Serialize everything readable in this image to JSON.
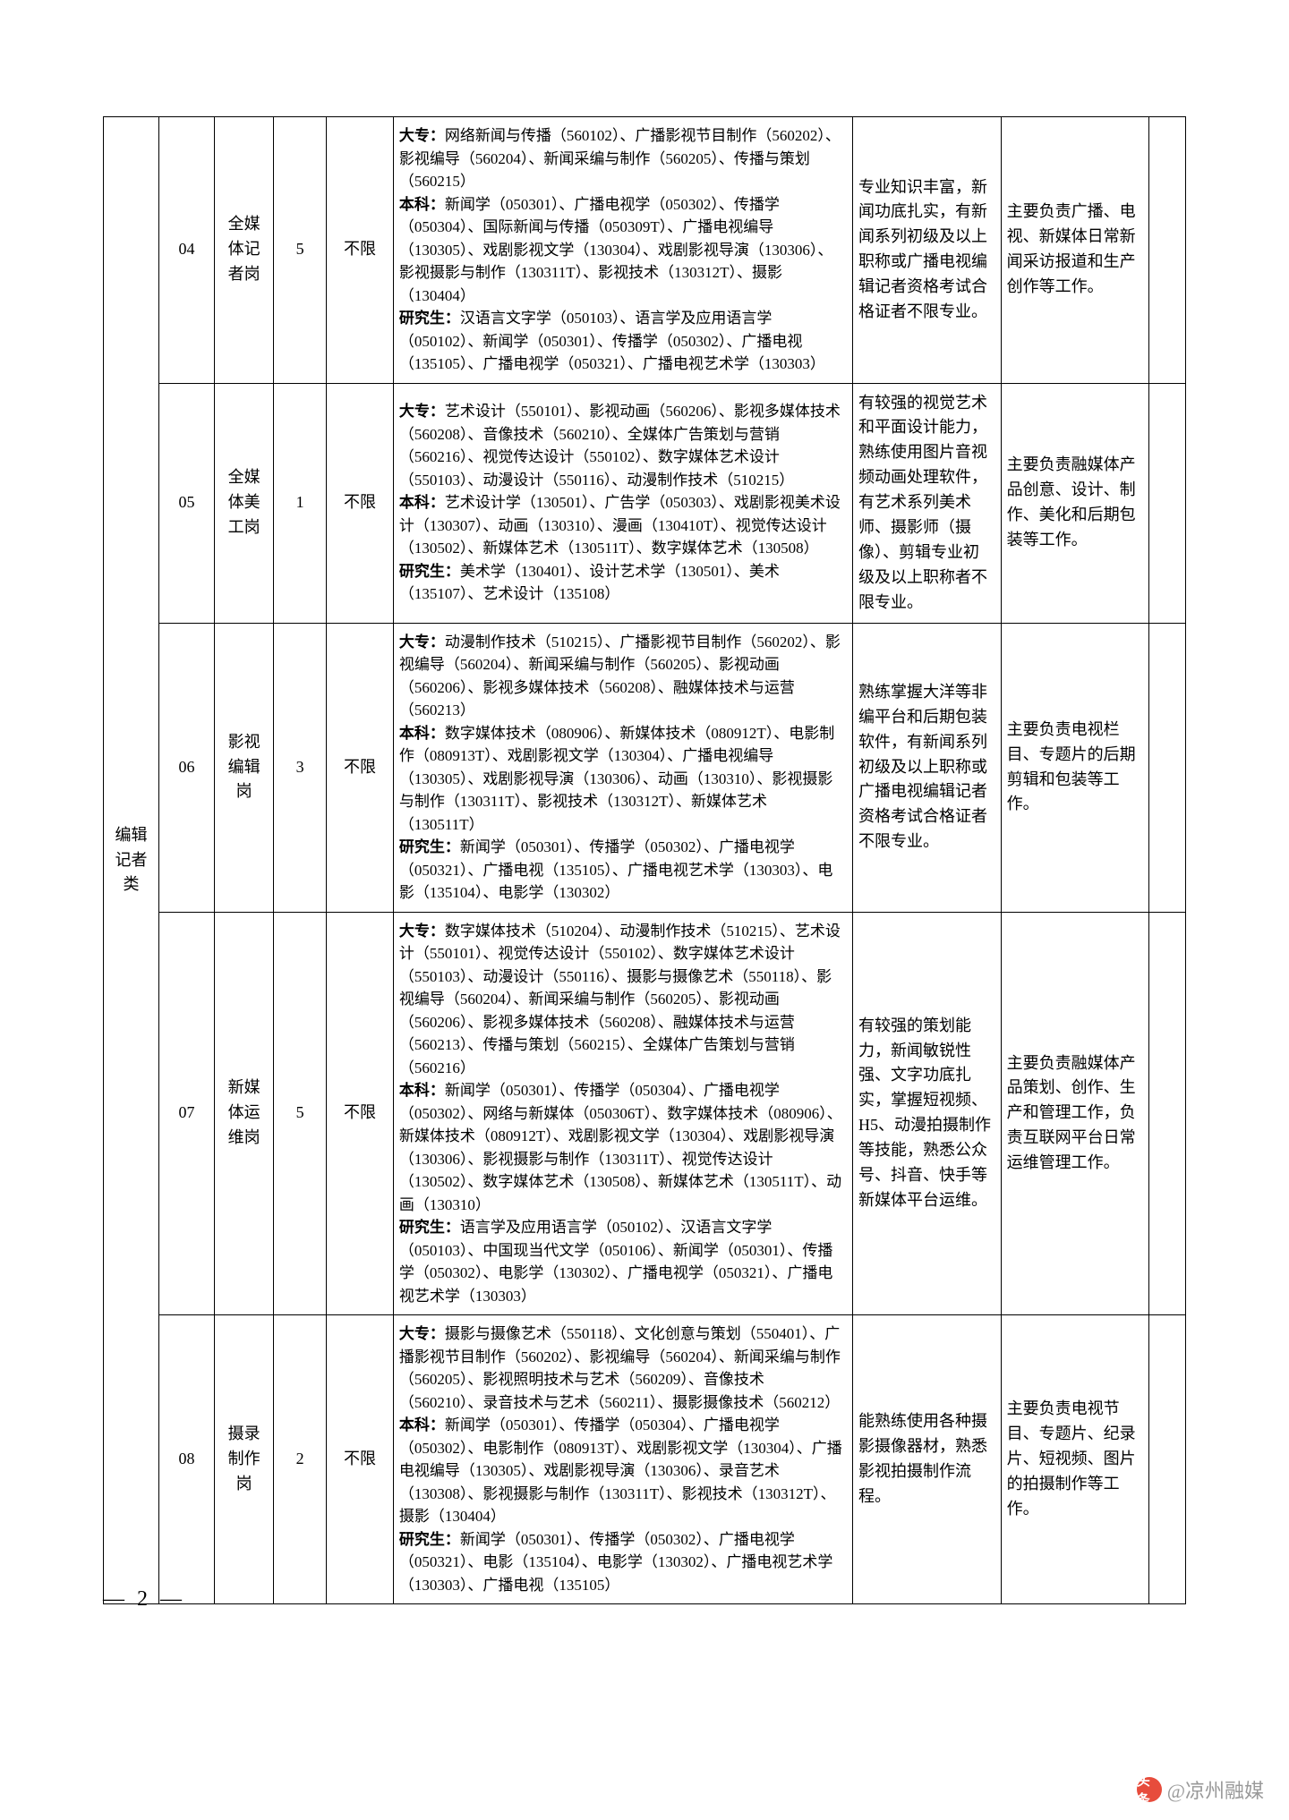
{
  "category_label": "编辑记者类",
  "page_number": "— 2 —",
  "watermark": {
    "icon_text": "头条",
    "text": "@凉州融媒"
  },
  "rows": [
    {
      "num": "04",
      "position": "全媒体记者岗",
      "count": "5",
      "limit": "不限",
      "major": "<b>大专：</b>网络新闻与传播（560102）、广播影视节目制作（560202）、影视编导（560204）、新闻采编与制作（560205）、传播与策划（560215）<br><b>本科：</b>新闻学（050301）、广播电视学（050302）、传播学（050304）、国际新闻与传播（050309T）、广播电视编导（130305）、戏剧影视文学（130304）、戏剧影视导演（130306）、影视摄影与制作（130311T）、影视技术（130312T）、摄影（130404）<br><b>研究生：</b>汉语言文字学（050103）、语言学及应用语言学（050102）、新闻学（050301）、传播学（050302）、广播电视（135105）、广播电视学（050321）、广播电视艺术学（130303）",
      "req": "专业知识丰富，新闻功底扎实，有新闻系列初级及以上职称或广播电视编辑记者资格考试合格证者不限专业。",
      "duty": "主要负责广播、电视、新媒体日常新闻采访报道和生产创作等工作。"
    },
    {
      "num": "05",
      "position": "全媒体美工岗",
      "count": "1",
      "limit": "不限",
      "major": "<b>大专：</b>艺术设计（550101）、影视动画（560206）、影视多媒体技术（560208）、音像技术（560210）、全媒体广告策划与营销（560216）、视觉传达设计（550102）、数字媒体艺术设计（550103）、动漫设计（550116）、动漫制作技术（510215）<br><b>本科：</b>艺术设计学（130501）、广告学（050303）、戏剧影视美术设计（130307）、动画（130310）、漫画（130410T）、视觉传达设计（130502）、新媒体艺术（130511T）、数字媒体艺术（130508）<br><b>研究生：</b>美术学（130401）、设计艺术学（130501）、美术（135107）、艺术设计（135108）",
      "req": "有较强的视觉艺术和平面设计能力，熟练使用图片音视频动画处理软件，有艺术系列美术师、摄影师（摄像）、剪辑专业初级及以上职称者不限专业。",
      "duty": "主要负责融媒体产品创意、设计、制作、美化和后期包装等工作。"
    },
    {
      "num": "06",
      "position": "影视编辑岗",
      "count": "3",
      "limit": "不限",
      "major": "<b>大专：</b>动漫制作技术（510215）、广播影视节目制作（560202）、影视编导（560204）、新闻采编与制作（560205）、影视动画（560206）、影视多媒体技术（560208）、融媒体技术与运营（560213）<br><b>本科：</b>数字媒体技术（080906）、新媒体技术（080912T）、电影制作（080913T）、戏剧影视文学（130304）、广播电视编导（130305）、戏剧影视导演（130306）、动画（130310）、影视摄影与制作（130311T）、影视技术（130312T）、新媒体艺术（130511T）<br><b>研究生：</b>新闻学（050301）、传播学（050302）、广播电视学（050321）、广播电视（135105）、广播电视艺术学（130303）、电影（135104）、电影学（130302）",
      "req": "熟练掌握大洋等非编平台和后期包装软件，有新闻系列初级及以上职称或广播电视编辑记者资格考试合格证者不限专业。",
      "duty": "主要负责电视栏目、专题片的后期剪辑和包装等工作。"
    },
    {
      "num": "07",
      "position": "新媒体运维岗",
      "count": "5",
      "limit": "不限",
      "major": "<b>大专：</b>数字媒体技术（510204）、动漫制作技术（510215）、艺术设计（550101）、视觉传达设计（550102）、数字媒体艺术设计（550103）、动漫设计（550116）、摄影与摄像艺术（550118）、影视编导（560204）、新闻采编与制作（560205）、影视动画（560206）、影视多媒体技术（560208）、融媒体技术与运营（560213）、传播与策划（560215）、全媒体广告策划与营销（560216）<br><b>本科：</b>新闻学（050301）、传播学（050304）、广播电视学（050302）、网络与新媒体（050306T）、数字媒体技术（080906）、新媒体技术（080912T）、戏剧影视文学（130304）、戏剧影视导演（130306）、影视摄影与制作（130311T）、视觉传达设计（130502）、数字媒体艺术（130508）、新媒体艺术（130511T）、动画（130310）<br><b>研究生：</b>语言学及应用语言学（050102）、汉语言文字学（050103）、中国现当代文学（050106）、新闻学（050301）、传播学（050302）、电影学（130302）、广播电视学（050321）、广播电视艺术学（130303）",
      "req": "有较强的策划能力，新闻敏锐性强、文字功底扎实，掌握短视频、H5、动漫拍摄制作等技能，熟悉公众号、抖音、快手等新媒体平台运维。",
      "duty": "主要负责融媒体产品策划、创作、生产和管理工作，负责互联网平台日常运维管理工作。"
    },
    {
      "num": "08",
      "position": "摄录制作岗",
      "count": "2",
      "limit": "不限",
      "major": "<b>大专：</b>摄影与摄像艺术（550118）、文化创意与策划（550401）、广播影视节目制作（560202）、影视编导（560204）、新闻采编与制作（560205）、影视照明技术与艺术（560209）、音像技术（560210）、录音技术与艺术（560211）、摄影摄像技术（560212）<br><b>本科：</b>新闻学（050301）、传播学（050304）、广播电视学（050302）、电影制作（080913T）、戏剧影视文学（130304）、广播电视编导（130305）、戏剧影视导演（130306）、录音艺术（130308）、影视摄影与制作（130311T）、影视技术（130312T）、摄影（130404）<br><b>研究生：</b>新闻学（050301）、传播学（050302）、广播电视学（050321）、电影（135104）、电影学（130302）、广播电视艺术学（130303）、广播电视（135105）",
      "req": "能熟练使用各种摄影摄像器材，熟悉影视拍摄制作流程。",
      "duty": "主要负责电视节目、专题片、纪录片、短视频、图片的拍摄制作等工作。"
    }
  ]
}
